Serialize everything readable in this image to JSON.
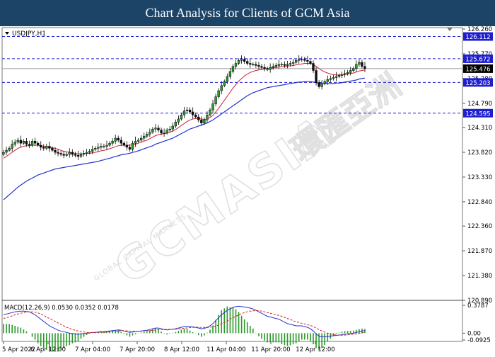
{
  "banner": {
    "title": "Chart Analysis for Clients of GCM Asia"
  },
  "chart_data": {
    "type": "candlestick",
    "symbol_label": "USDJPY,H1",
    "watermark": {
      "brand": "GCMASIA",
      "chinese": "環匯亞洲",
      "sub": "GLOBAL CAPITAL MARKETS"
    },
    "price_axis": {
      "ylim": [
        120.89,
        126.26
      ],
      "ticks": [
        "126.260",
        "125.770",
        "125.280",
        "124.790",
        "124.310",
        "123.820",
        "123.330",
        "122.840",
        "122.360",
        "121.870",
        "121.380",
        "120.890"
      ]
    },
    "levels": [
      {
        "label": "126.112",
        "value": 126.112,
        "style": "dashed",
        "color": "#1f1fd0"
      },
      {
        "label": "125.672",
        "value": 125.672,
        "style": "dashed",
        "color": "#1f1fd0"
      },
      {
        "label": "125.476",
        "value": 125.476,
        "style": "solid",
        "color": "#999999",
        "current": true
      },
      {
        "label": "125.203",
        "value": 125.203,
        "style": "dashed",
        "color": "#1f1fd0"
      },
      {
        "label": "124.595",
        "value": 124.595,
        "style": "dashed",
        "color": "#1f1fd0"
      }
    ],
    "time_labels": [
      "5 Apr 2022",
      "6 Apr 12:00",
      "7 Apr 04:00",
      "7 Apr 20:00",
      "8 Apr 12:00",
      "11 Apr 04:00",
      "11 Apr 20:00",
      "12 Apr 12:00"
    ],
    "close": [
      123.82,
      123.86,
      123.9,
      123.98,
      124.02,
      124.06,
      124.0,
      124.04,
      123.98,
      123.96,
      124.04,
      124.0,
      123.96,
      123.92,
      123.9,
      123.94,
      123.9,
      123.86,
      123.82,
      123.8,
      123.78,
      123.76,
      123.78,
      123.82,
      123.78,
      123.76,
      123.74,
      123.78,
      123.8,
      123.82,
      123.84,
      123.88,
      123.9,
      123.92,
      123.94,
      123.94,
      123.96,
      124.0,
      124.04,
      124.1,
      124.06,
      124.0,
      123.96,
      123.92,
      123.88,
      124.0,
      124.04,
      124.06,
      124.1,
      124.14,
      124.18,
      124.22,
      124.28,
      124.3,
      124.26,
      124.2,
      124.2,
      124.26,
      124.28,
      124.34,
      124.42,
      124.48,
      124.56,
      124.64,
      124.66,
      124.62,
      124.56,
      124.52,
      124.46,
      124.4,
      124.46,
      124.56,
      124.66,
      124.78,
      124.92,
      125.04,
      125.14,
      125.22,
      125.32,
      125.42,
      125.52,
      125.58,
      125.64,
      125.66,
      125.62,
      125.58,
      125.56,
      125.56,
      125.54,
      125.52,
      125.5,
      125.48,
      125.46,
      125.5,
      125.52,
      125.54,
      125.56,
      125.56,
      125.54,
      125.56,
      125.58,
      125.6,
      125.64,
      125.66,
      125.66,
      125.64,
      125.62,
      125.58,
      125.44,
      125.2,
      125.12,
      125.18,
      125.22,
      125.26,
      125.28,
      125.3,
      125.32,
      125.34,
      125.36,
      125.38,
      125.4,
      125.44,
      125.48,
      125.56,
      125.6,
      125.52,
      125.48
    ],
    "ema_fast": [
      123.7,
      123.74,
      123.78,
      123.82,
      123.86,
      123.9,
      123.92,
      123.94,
      123.95,
      123.95,
      123.96,
      123.96,
      123.96,
      123.95,
      123.94,
      123.93,
      123.92,
      123.91,
      123.9,
      123.88,
      123.86,
      123.84,
      123.83,
      123.82,
      123.81,
      123.8,
      123.79,
      123.79,
      123.79,
      123.8,
      123.8,
      123.81,
      123.82,
      123.83,
      123.85,
      123.86,
      123.87,
      123.89,
      123.91,
      123.93,
      123.95,
      123.96,
      123.96,
      123.96,
      123.96,
      123.97,
      123.98,
      124.0,
      124.02,
      124.04,
      124.06,
      124.09,
      124.12,
      124.15,
      124.17,
      124.18,
      124.19,
      124.2,
      124.22,
      124.24,
      124.27,
      124.31,
      124.35,
      124.39,
      124.43,
      124.46,
      124.48,
      124.49,
      124.49,
      124.48,
      124.47,
      124.48,
      124.51,
      124.55,
      124.62,
      124.69,
      124.77,
      124.85,
      124.93,
      125.01,
      125.09,
      125.16,
      125.23,
      125.28,
      125.33,
      125.37,
      125.4,
      125.42,
      125.44,
      125.45,
      125.46,
      125.47,
      125.47,
      125.48,
      125.49,
      125.5,
      125.51,
      125.52,
      125.52,
      125.53,
      125.53,
      125.54,
      125.55,
      125.56,
      125.57,
      125.58,
      125.58,
      125.58,
      125.56,
      125.52,
      125.48,
      125.44,
      125.41,
      125.39,
      125.37,
      125.36,
      125.35,
      125.35,
      125.35,
      125.36,
      125.37,
      125.38,
      125.39,
      125.41,
      125.43,
      125.44,
      125.45
    ],
    "ema_slow": [
      122.88,
      122.93,
      122.98,
      123.03,
      123.08,
      123.13,
      123.17,
      123.21,
      123.25,
      123.28,
      123.31,
      123.34,
      123.37,
      123.39,
      123.41,
      123.43,
      123.45,
      123.47,
      123.49,
      123.5,
      123.51,
      123.52,
      123.53,
      123.54,
      123.55,
      123.56,
      123.57,
      123.58,
      123.59,
      123.6,
      123.61,
      123.62,
      123.63,
      123.64,
      123.66,
      123.67,
      123.69,
      123.7,
      123.72,
      123.74,
      123.75,
      123.77,
      123.78,
      123.79,
      123.8,
      123.82,
      123.83,
      123.85,
      123.87,
      123.89,
      123.91,
      123.93,
      123.95,
      123.98,
      124.0,
      124.02,
      124.04,
      124.06,
      124.08,
      124.1,
      124.13,
      124.16,
      124.19,
      124.22,
      124.25,
      124.28,
      124.3,
      124.32,
      124.34,
      124.36,
      124.38,
      124.4,
      124.43,
      124.46,
      124.5,
      124.54,
      124.58,
      124.62,
      124.66,
      124.7,
      124.74,
      124.78,
      124.82,
      124.86,
      124.9,
      124.94,
      124.97,
      125.0,
      125.02,
      125.04,
      125.06,
      125.08,
      125.1,
      125.11,
      125.12,
      125.13,
      125.14,
      125.15,
      125.16,
      125.17,
      125.18,
      125.19,
      125.2,
      125.21,
      125.21,
      125.22,
      125.22,
      125.22,
      125.21,
      125.2,
      125.19,
      125.18,
      125.18,
      125.18,
      125.18,
      125.18,
      125.19,
      125.19,
      125.2,
      125.21,
      125.22,
      125.23,
      125.24,
      125.25,
      125.27,
      125.28,
      125.29
    ],
    "macd": {
      "label": "MACD(12,26,9) 0.0530 0.0352 0.0178",
      "params": [
        12,
        26,
        9
      ],
      "values": [
        0.053,
        0.0352,
        0.0178
      ],
      "ylim": [
        -0.0925,
        0.3787
      ],
      "ticks": [
        "0.3787",
        "0.00",
        "-0.0925"
      ],
      "signal_color": "#cc2222",
      "macd_color": "#2233cc",
      "hist_color": "#2a9a2a",
      "line": [
        0.25,
        0.26,
        0.27,
        0.28,
        0.29,
        0.295,
        0.3,
        0.3,
        0.295,
        0.29,
        0.27,
        0.25,
        0.22,
        0.19,
        0.16,
        0.13,
        0.1,
        0.08,
        0.06,
        0.04,
        0.03,
        0.02,
        0.01,
        0.0,
        -0.005,
        -0.01,
        -0.015,
        -0.01,
        -0.005,
        0.0,
        0.005,
        0.01,
        0.01,
        0.015,
        0.02,
        0.02,
        0.025,
        0.03,
        0.035,
        0.04,
        0.045,
        0.04,
        0.03,
        0.02,
        0.01,
        0.015,
        0.02,
        0.025,
        0.03,
        0.035,
        0.04,
        0.05,
        0.06,
        0.07,
        0.07,
        0.06,
        0.05,
        0.045,
        0.05,
        0.055,
        0.06,
        0.07,
        0.08,
        0.09,
        0.095,
        0.09,
        0.085,
        0.08,
        0.07,
        0.06,
        0.065,
        0.08,
        0.1,
        0.13,
        0.17,
        0.21,
        0.25,
        0.28,
        0.31,
        0.33,
        0.35,
        0.36,
        0.365,
        0.36,
        0.355,
        0.35,
        0.34,
        0.33,
        0.31,
        0.29,
        0.27,
        0.25,
        0.23,
        0.22,
        0.21,
        0.2,
        0.19,
        0.17,
        0.15,
        0.13,
        0.12,
        0.11,
        0.1,
        0.1,
        0.1,
        0.09,
        0.08,
        0.06,
        0.03,
        -0.01,
        -0.04,
        -0.05,
        -0.05,
        -0.045,
        -0.04,
        -0.035,
        -0.03,
        -0.025,
        -0.02,
        -0.015,
        -0.01,
        -0.005,
        0.0,
        0.01,
        0.02,
        0.03,
        0.035
      ],
      "signal": [
        0.2,
        0.21,
        0.22,
        0.235,
        0.25,
        0.26,
        0.27,
        0.28,
        0.285,
        0.29,
        0.29,
        0.285,
        0.275,
        0.26,
        0.24,
        0.22,
        0.2,
        0.18,
        0.16,
        0.14,
        0.12,
        0.1,
        0.08,
        0.065,
        0.05,
        0.04,
        0.03,
        0.02,
        0.015,
        0.01,
        0.008,
        0.008,
        0.008,
        0.009,
        0.01,
        0.012,
        0.015,
        0.018,
        0.022,
        0.026,
        0.03,
        0.033,
        0.034,
        0.032,
        0.029,
        0.027,
        0.026,
        0.026,
        0.027,
        0.029,
        0.031,
        0.034,
        0.038,
        0.043,
        0.048,
        0.051,
        0.052,
        0.052,
        0.052,
        0.053,
        0.054,
        0.057,
        0.061,
        0.066,
        0.072,
        0.076,
        0.079,
        0.081,
        0.081,
        0.079,
        0.077,
        0.077,
        0.081,
        0.088,
        0.098,
        0.11,
        0.125,
        0.145,
        0.165,
        0.19,
        0.21,
        0.23,
        0.25,
        0.265,
        0.28,
        0.29,
        0.3,
        0.305,
        0.308,
        0.306,
        0.3,
        0.29,
        0.28,
        0.27,
        0.26,
        0.25,
        0.24,
        0.23,
        0.215,
        0.2,
        0.185,
        0.17,
        0.155,
        0.145,
        0.135,
        0.125,
        0.115,
        0.105,
        0.09,
        0.07,
        0.05,
        0.03,
        0.015,
        0.0,
        -0.01,
        -0.02,
        -0.025,
        -0.028,
        -0.028,
        -0.026,
        -0.022,
        -0.018,
        -0.014,
        -0.008,
        -0.002,
        0.005,
        0.012
      ]
    }
  }
}
